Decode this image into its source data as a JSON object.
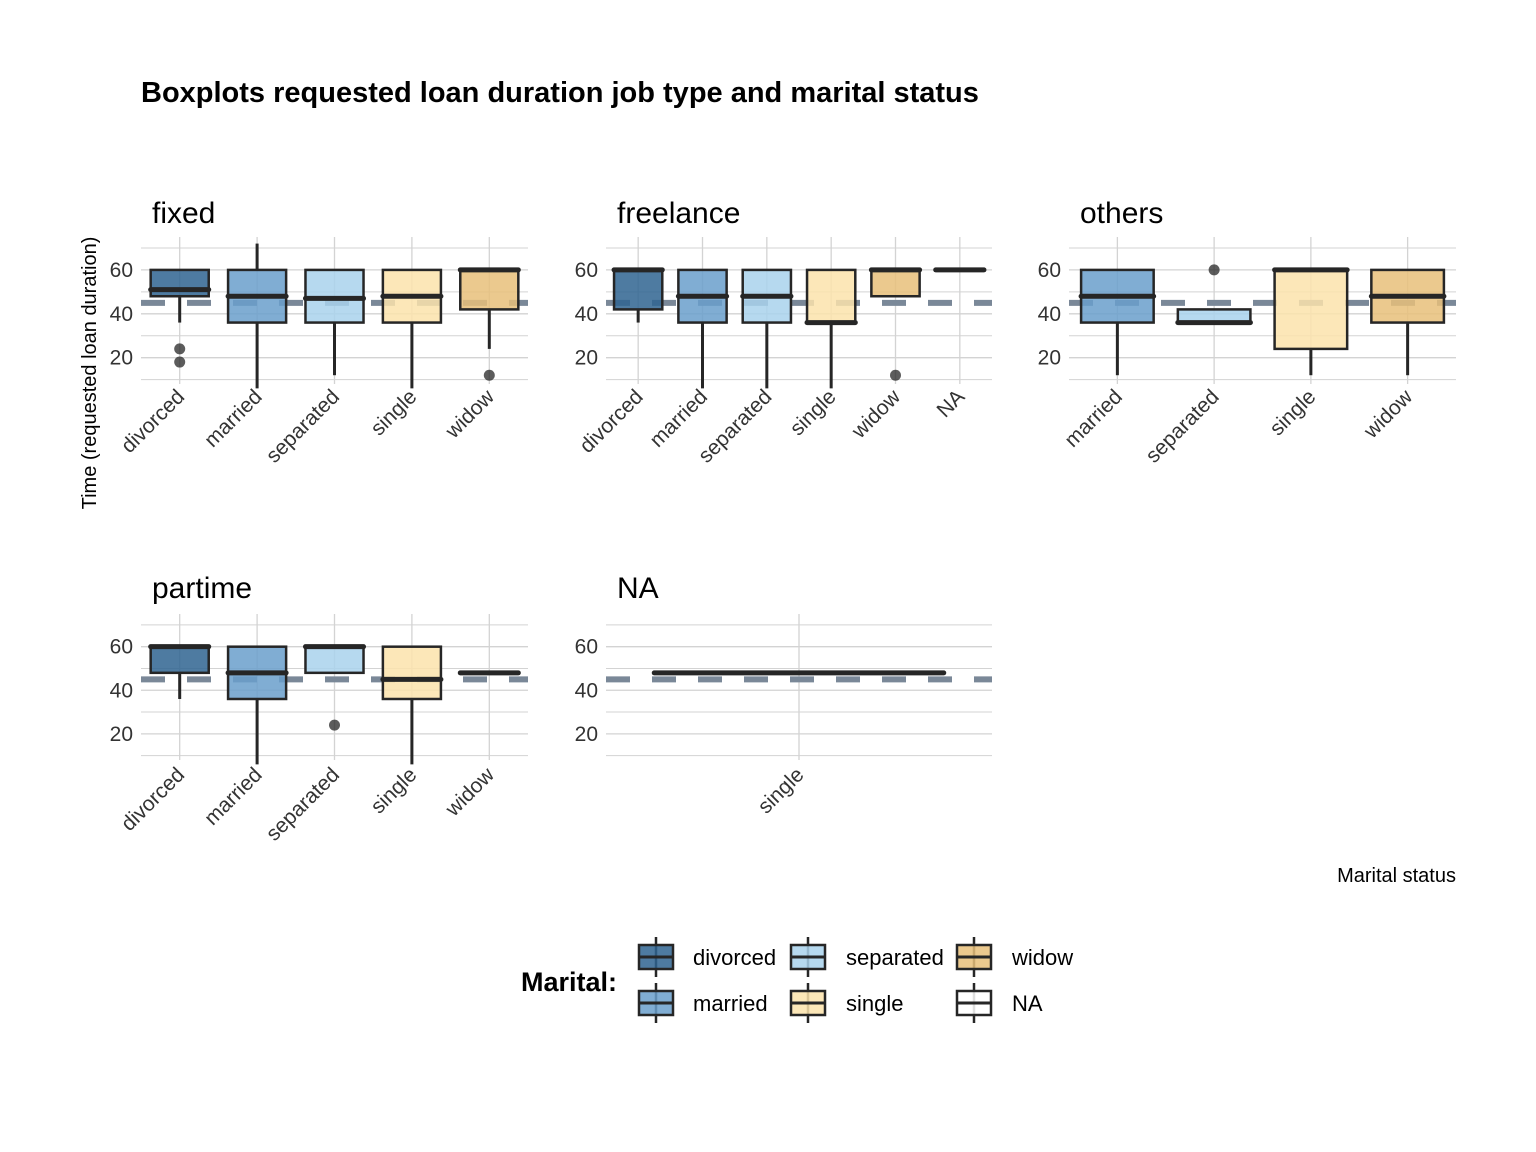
{
  "chart_data": {
    "type": "boxplot",
    "title": "Boxplots requested loan duration job type and marital status",
    "xlabel": "Marital status",
    "ylabel": "Time (requested loan duration)",
    "ylim": [
      8,
      75
    ],
    "yticks": [
      20,
      40,
      60
    ],
    "reference_line": 45,
    "legend": {
      "title": "Marital:",
      "position": "bottom",
      "entries": [
        "divorced",
        "separated",
        "widow",
        "married",
        "single",
        "NA"
      ]
    },
    "colors": {
      "divorced": "#2F6490",
      "married": "#6A9FCB",
      "separated": "#A9D2EC",
      "single": "#FCE3AC",
      "widow": "#E8C07A",
      "NA": "#FFFFFF",
      "reference": "#7A8898",
      "grid": "#D3D3D3",
      "box_line": "#262626"
    },
    "panels": [
      {
        "name": "fixed",
        "categories": [
          "divorced",
          "married",
          "separated",
          "single",
          "widow"
        ],
        "boxes": [
          {
            "category": "divorced",
            "min": 36,
            "q1": 48,
            "median": 51,
            "q3": 60,
            "max": 60,
            "outliers": [
              24,
              18
            ]
          },
          {
            "category": "married",
            "min": 6,
            "q1": 36,
            "median": 48,
            "q3": 60,
            "max": 72,
            "outliers": []
          },
          {
            "category": "separated",
            "min": 12,
            "q1": 36,
            "median": 47,
            "q3": 60,
            "max": 60,
            "outliers": []
          },
          {
            "category": "single",
            "min": 6,
            "q1": 36,
            "median": 48,
            "q3": 60,
            "max": 60,
            "outliers": []
          },
          {
            "category": "widow",
            "min": 24,
            "q1": 42,
            "median": 60,
            "q3": 60,
            "max": 60,
            "outliers": [
              12
            ]
          }
        ]
      },
      {
        "name": "freelance",
        "categories": [
          "divorced",
          "married",
          "separated",
          "single",
          "widow",
          "NA"
        ],
        "boxes": [
          {
            "category": "divorced",
            "min": 36,
            "q1": 42,
            "median": 60,
            "q3": 60,
            "max": 60,
            "outliers": []
          },
          {
            "category": "married",
            "min": 6,
            "q1": 36,
            "median": 48,
            "q3": 60,
            "max": 60,
            "outliers": []
          },
          {
            "category": "separated",
            "min": 6,
            "q1": 36,
            "median": 48,
            "q3": 60,
            "max": 60,
            "outliers": []
          },
          {
            "category": "single",
            "min": 6,
            "q1": 36,
            "median": 36,
            "q3": 60,
            "max": 60,
            "outliers": []
          },
          {
            "category": "widow",
            "min": 48,
            "q1": 48,
            "median": 60,
            "q3": 60,
            "max": 60,
            "outliers": [
              12
            ]
          },
          {
            "category": "NA",
            "min": 60,
            "q1": 60,
            "median": 60,
            "q3": 60,
            "max": 60,
            "outliers": []
          }
        ]
      },
      {
        "name": "others",
        "categories": [
          "married",
          "separated",
          "single",
          "widow"
        ],
        "boxes": [
          {
            "category": "married",
            "min": 12,
            "q1": 36,
            "median": 48,
            "q3": 60,
            "max": 60,
            "outliers": []
          },
          {
            "category": "separated",
            "min": 36,
            "q1": 36,
            "median": 36,
            "q3": 42,
            "max": 42,
            "outliers": [
              60
            ]
          },
          {
            "category": "single",
            "min": 12,
            "q1": 24,
            "median": 60,
            "q3": 60,
            "max": 60,
            "outliers": []
          },
          {
            "category": "widow",
            "min": 12,
            "q1": 36,
            "median": 48,
            "q3": 60,
            "max": 60,
            "outliers": []
          }
        ]
      },
      {
        "name": "partime",
        "categories": [
          "divorced",
          "married",
          "separated",
          "single",
          "widow"
        ],
        "boxes": [
          {
            "category": "divorced",
            "min": 36,
            "q1": 48,
            "median": 60,
            "q3": 60,
            "max": 60,
            "outliers": []
          },
          {
            "category": "married",
            "min": 6,
            "q1": 36,
            "median": 48,
            "q3": 60,
            "max": 60,
            "outliers": []
          },
          {
            "category": "separated",
            "min": 48,
            "q1": 48,
            "median": 60,
            "q3": 60,
            "max": 60,
            "outliers": [
              24
            ]
          },
          {
            "category": "single",
            "min": 6,
            "q1": 36,
            "median": 45,
            "q3": 60,
            "max": 60,
            "outliers": []
          },
          {
            "category": "widow",
            "min": 48,
            "q1": 48,
            "median": 48,
            "q3": 48,
            "max": 48,
            "outliers": []
          }
        ]
      },
      {
        "name": "NA",
        "categories": [
          "single"
        ],
        "boxes": [
          {
            "category": "single",
            "min": 48,
            "q1": 48,
            "median": 48,
            "q3": 48,
            "max": 48,
            "outliers": []
          }
        ]
      }
    ]
  }
}
